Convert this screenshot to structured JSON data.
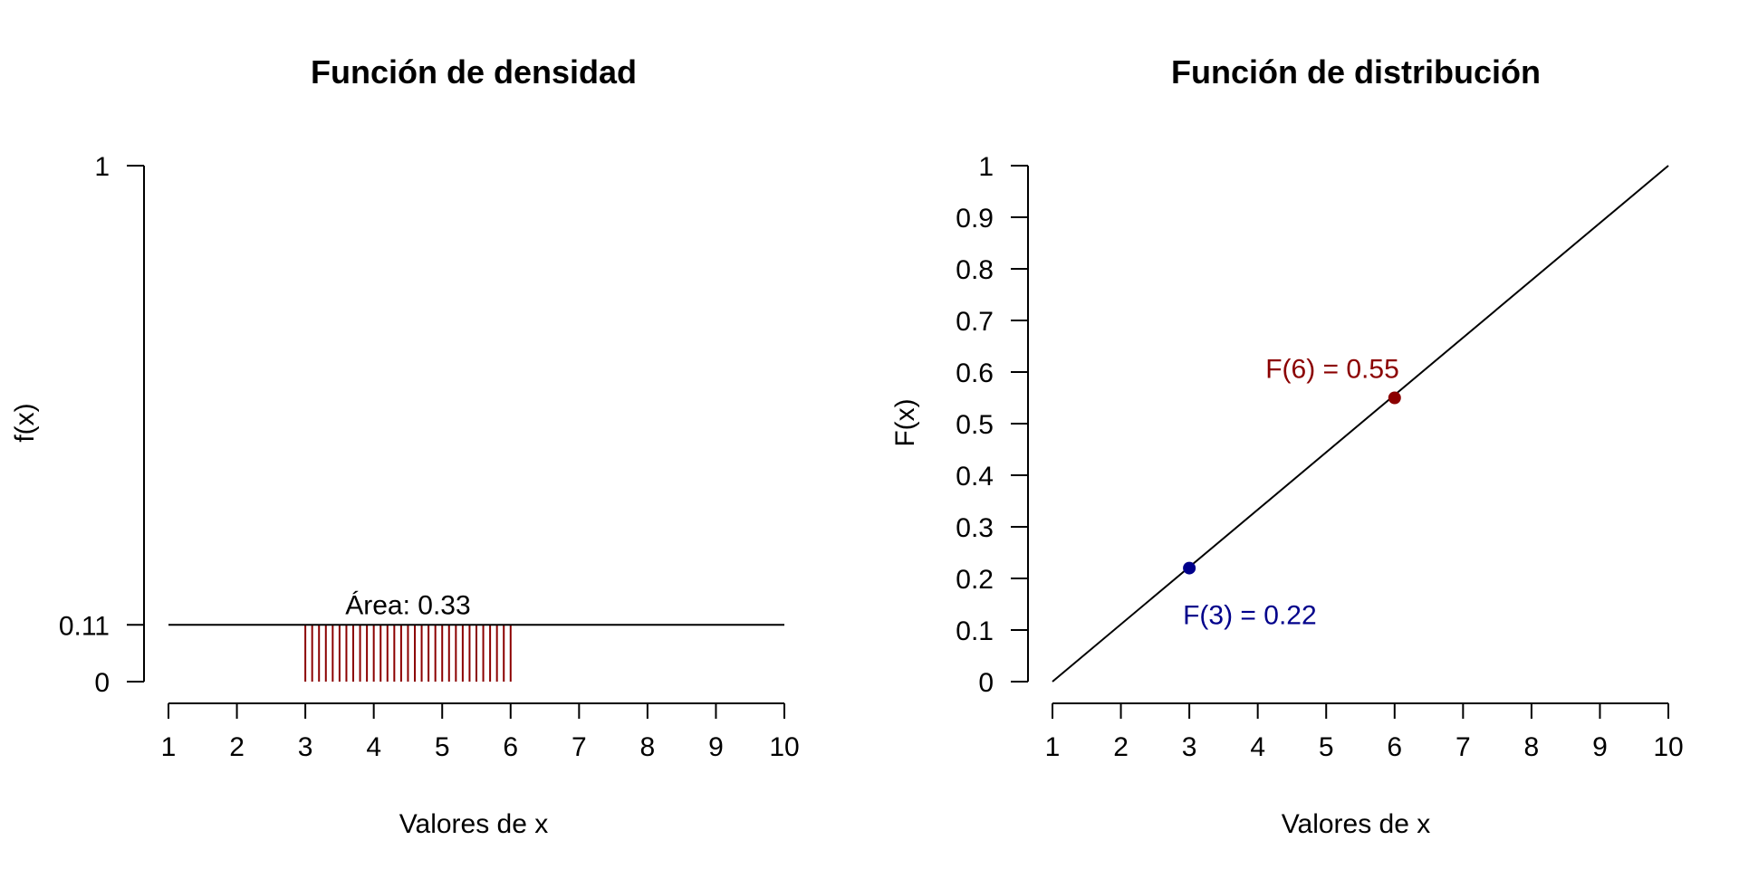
{
  "chart_data": [
    {
      "type": "line",
      "title": "Función de densidad",
      "xlabel": "Valores de x",
      "ylabel": "f(x)",
      "xlim": [
        1,
        10
      ],
      "ylim": [
        0,
        1
      ],
      "x_ticks": [
        "1",
        "2",
        "3",
        "4",
        "5",
        "6",
        "7",
        "8",
        "9",
        "10"
      ],
      "y_ticks": [
        {
          "value": 0,
          "label": "0"
        },
        {
          "value": 0.11,
          "label": "0.11"
        },
        {
          "value": 1,
          "label": "1"
        }
      ],
      "series": [
        {
          "x": [
            1,
            10
          ],
          "y": [
            0.11,
            0.11
          ],
          "color": "#000000"
        }
      ],
      "shaded_region": {
        "from": 3,
        "to": 6,
        "height": 0.11,
        "color": "#8b0000"
      },
      "annotations": [
        {
          "text": "Área: 0.33",
          "x": 4.5,
          "y": 0.11
        }
      ],
      "grid": false
    },
    {
      "type": "line",
      "title": "Función de distribución",
      "xlabel": "Valores de x",
      "ylabel": "F(x)",
      "xlim": [
        1,
        10
      ],
      "ylim": [
        0,
        1
      ],
      "x_ticks": [
        "1",
        "2",
        "3",
        "4",
        "5",
        "6",
        "7",
        "8",
        "9",
        "10"
      ],
      "y_ticks": [
        {
          "value": 0,
          "label": "0"
        },
        {
          "value": 0.1,
          "label": "0.1"
        },
        {
          "value": 0.2,
          "label": "0.2"
        },
        {
          "value": 0.3,
          "label": "0.3"
        },
        {
          "value": 0.4,
          "label": "0.4"
        },
        {
          "value": 0.5,
          "label": "0.5"
        },
        {
          "value": 0.6,
          "label": "0.6"
        },
        {
          "value": 0.7,
          "label": "0.7"
        },
        {
          "value": 0.8,
          "label": "0.8"
        },
        {
          "value": 0.9,
          "label": "0.9"
        },
        {
          "value": 1,
          "label": "1"
        }
      ],
      "series": [
        {
          "x": [
            1,
            10
          ],
          "y": [
            0,
            1
          ],
          "color": "#000000"
        }
      ],
      "points": [
        {
          "x": 3,
          "y": 0.22,
          "label": "F(3) = 0.22",
          "color": "#00008b",
          "label_position": "below"
        },
        {
          "x": 6,
          "y": 0.55,
          "label": "F(6) = 0.55",
          "color": "#8b0000",
          "label_position": "above"
        }
      ],
      "grid": false
    }
  ]
}
